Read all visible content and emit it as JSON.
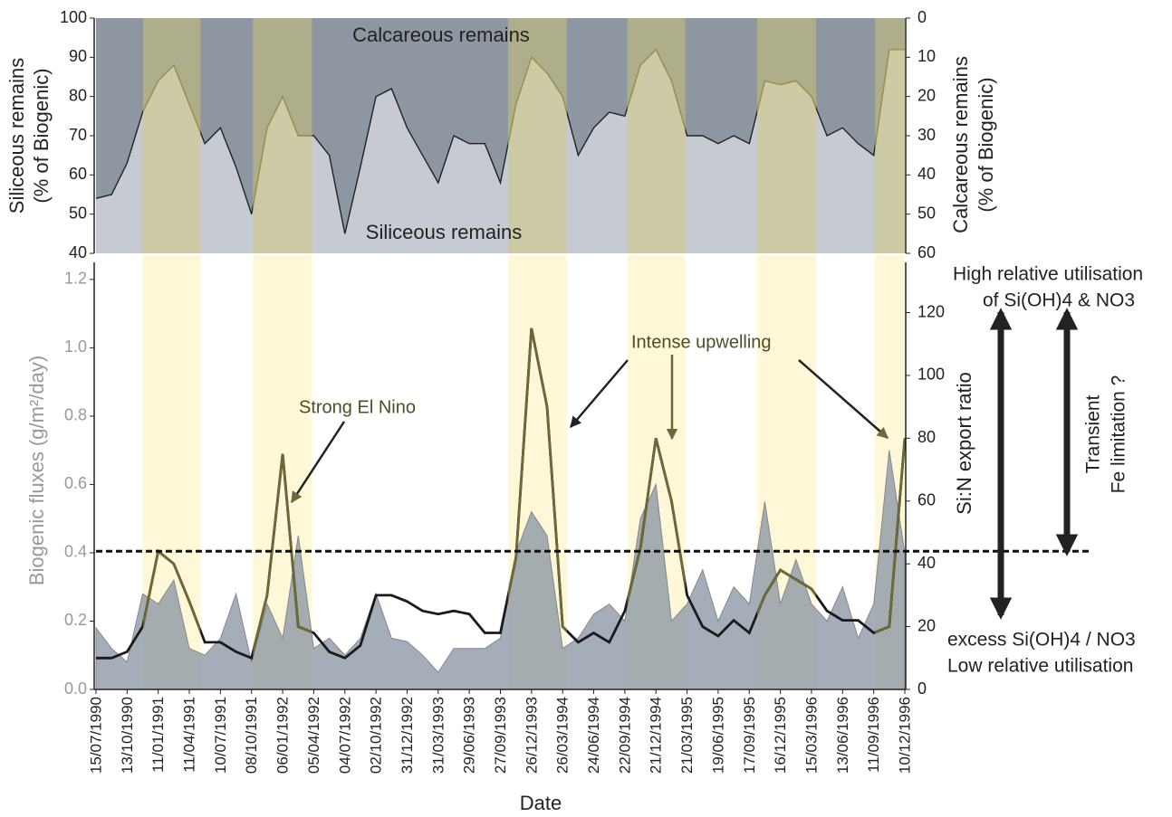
{
  "chart_data": [
    {
      "type": "area",
      "annotations": [
        "Calcareous remains",
        "Siliceous remains"
      ],
      "y_label": [
        "Siliceous remains",
        "(% of Biogenic)"
      ],
      "y2_label": [
        "Calcareous remains",
        "(% of Biogenic)"
      ],
      "x": [
        "15/07/1990",
        "29/08/1990",
        "13/10/1990",
        "27/11/1990",
        "11/01/1991",
        "25/02/1991",
        "11/04/1991",
        "26/05/1991",
        "10/07/1991",
        "24/08/1991",
        "08/10/1991",
        "22/11/1991",
        "06/01/1992",
        "20/02/1992",
        "05/04/1992",
        "20/05/1992",
        "04/07/1992",
        "18/08/1992",
        "02/10/1992",
        "16/11/1992",
        "31/12/1992",
        "14/02/1993",
        "31/03/1993",
        "15/05/1993",
        "29/06/1993",
        "13/08/1993",
        "27/09/1993",
        "11/11/1993",
        "26/12/1993",
        "09/02/1994",
        "26/03/1994",
        "10/05/1994",
        "24/06/1994",
        "08/08/1994",
        "22/09/1994",
        "06/11/1994",
        "21/12/1994",
        "04/02/1995",
        "21/03/1995",
        "05/05/1995",
        "19/06/1995",
        "03/08/1995",
        "17/09/1995",
        "01/11/1995",
        "16/12/1995",
        "30/01/1996",
        "15/03/1996",
        "29/04/1996",
        "13/06/1996",
        "28/07/1996",
        "11/09/1996",
        "26/10/1996",
        "10/12/1996"
      ],
      "series": [
        {
          "color": "#222222",
          "values": [
            54,
            55,
            63,
            76,
            84,
            88,
            78,
            68,
            72,
            62,
            50,
            72,
            80,
            70,
            70,
            65,
            45,
            62,
            80,
            82,
            72,
            65,
            58,
            70,
            68,
            68,
            58,
            78,
            90,
            86,
            80,
            65,
            72,
            76,
            75,
            88,
            92,
            84,
            70,
            70,
            68,
            70,
            68,
            84,
            83,
            84,
            80,
            70,
            72,
            68,
            65,
            92,
            92
          ]
        }
      ],
      "xlim": [
        "15/07/1990",
        "10/12/1996"
      ],
      "ylim": [
        40,
        100
      ],
      "yticks": [
        40,
        50,
        60,
        70,
        80,
        90,
        100
      ],
      "y2lim": [
        60,
        0
      ],
      "y2ticks": [
        0,
        10,
        20,
        30,
        40,
        50,
        60
      ],
      "bands": [
        [
          "28/11/1990",
          "13/05/1991"
        ],
        [
          "12/10/1991",
          "31/03/1992"
        ],
        [
          "19/10/1993",
          "07/04/1994"
        ],
        [
          "29/09/1994",
          "16/03/1995"
        ],
        [
          "10/10/1995",
          "28/03/1996"
        ],
        [
          "15/09/1996",
          "10/12/1996"
        ]
      ]
    },
    {
      "type": "line",
      "x_label": "Date",
      "y_label": "Biogenic fluxes (g/m²/day)",
      "y2_label": "Si:N export ratio",
      "annotations": [
        "Strong El Nino",
        "Intense upwelling"
      ],
      "right_notes": {
        "high": [
          "High relative utilisation",
          "of Si(OH)4 & NO3"
        ],
        "low": [
          "excess Si(OH)4 / NO3",
          "Low relative utilisation"
        ],
        "fe": [
          "Transient",
          "Fe limitation ?"
        ]
      },
      "x": [
        "15/07/1990",
        "29/08/1990",
        "13/10/1990",
        "27/11/1990",
        "11/01/1991",
        "25/02/1991",
        "11/04/1991",
        "26/05/1991",
        "10/07/1991",
        "24/08/1991",
        "08/10/1991",
        "22/11/1991",
        "06/01/1992",
        "20/02/1992",
        "05/04/1992",
        "20/05/1992",
        "04/07/1992",
        "18/08/1992",
        "02/10/1992",
        "16/11/1992",
        "31/12/1992",
        "14/02/1993",
        "31/03/1993",
        "15/05/1993",
        "29/06/1993",
        "13/08/1993",
        "27/09/1993",
        "11/11/1993",
        "26/12/1993",
        "09/02/1994",
        "26/03/1994",
        "10/05/1994",
        "24/06/1994",
        "08/08/1994",
        "22/09/1994",
        "06/11/1994",
        "21/12/1994",
        "04/02/1995",
        "21/03/1995",
        "05/05/1995",
        "19/06/1995",
        "03/08/1995",
        "17/09/1995",
        "01/11/1995",
        "16/12/1995",
        "30/01/1996",
        "15/03/1996",
        "29/04/1996",
        "13/06/1996",
        "28/07/1996",
        "11/09/1996",
        "26/10/1996",
        "10/12/1996"
      ],
      "series": [
        {
          "kind": "area",
          "color": "#8f99a6",
          "values": [
            0.18,
            0.12,
            0.08,
            0.28,
            0.25,
            0.32,
            0.12,
            0.1,
            0.15,
            0.28,
            0.08,
            0.25,
            0.15,
            0.45,
            0.12,
            0.15,
            0.1,
            0.15,
            0.28,
            0.15,
            0.14,
            0.1,
            0.05,
            0.12,
            0.12,
            0.12,
            0.15,
            0.4,
            0.52,
            0.45,
            0.12,
            0.15,
            0.22,
            0.25,
            0.2,
            0.5,
            0.6,
            0.2,
            0.25,
            0.35,
            0.2,
            0.3,
            0.25,
            0.55,
            0.25,
            0.38,
            0.25,
            0.2,
            0.3,
            0.15,
            0.25,
            0.7,
            0.4
          ]
        },
        {
          "kind": "line",
          "axis": "y2",
          "color": "#1a1a1a",
          "values": [
            10,
            10,
            12,
            20,
            44,
            40,
            28,
            15,
            15,
            12,
            10,
            30,
            75,
            20,
            18,
            12,
            10,
            14,
            30,
            30,
            28,
            25,
            24,
            25,
            24,
            18,
            18,
            42,
            115,
            90,
            20,
            15,
            18,
            15,
            25,
            45,
            80,
            60,
            30,
            20,
            17,
            22,
            18,
            30,
            38,
            35,
            32,
            25,
            22,
            22,
            18,
            20,
            80
          ]
        }
      ],
      "threshold": 44,
      "xlim": [
        "15/07/1990",
        "10/12/1996"
      ],
      "xticks": [
        "15/07/1990",
        "13/10/1990",
        "11/01/1991",
        "11/04/1991",
        "10/07/1991",
        "08/10/1991",
        "06/01/1992",
        "05/04/1992",
        "04/07/1992",
        "02/10/1992",
        "31/12/1992",
        "31/03/1993",
        "29/06/1993",
        "27/09/1993",
        "26/12/1993",
        "26/03/1994",
        "24/06/1994",
        "22/09/1994",
        "21/12/1994",
        "21/03/1995",
        "19/06/1995",
        "17/09/1995",
        "16/12/1995",
        "15/03/1996",
        "13/06/1996",
        "11/09/1996",
        "10/12/1996"
      ],
      "ylim": [
        0,
        1.25
      ],
      "yticks": [
        {
          "value": 0,
          "label": "0.0"
        },
        0.2,
        0.4,
        0.6,
        0.8,
        {
          "value": 1,
          "label": "1.0"
        },
        1.2
      ],
      "y2lim": [
        0,
        136
      ],
      "y2ticks": [
        0,
        20,
        40,
        60,
        80,
        100,
        120
      ],
      "bands": [
        [
          "28/11/1990",
          "13/05/1991"
        ],
        [
          "12/10/1991",
          "31/03/1992"
        ],
        [
          "19/10/1993",
          "07/04/1994"
        ],
        [
          "29/09/1994",
          "16/03/1995"
        ],
        [
          "10/10/1995",
          "28/03/1996"
        ],
        [
          "15/09/1996",
          "10/12/1996"
        ]
      ]
    }
  ]
}
